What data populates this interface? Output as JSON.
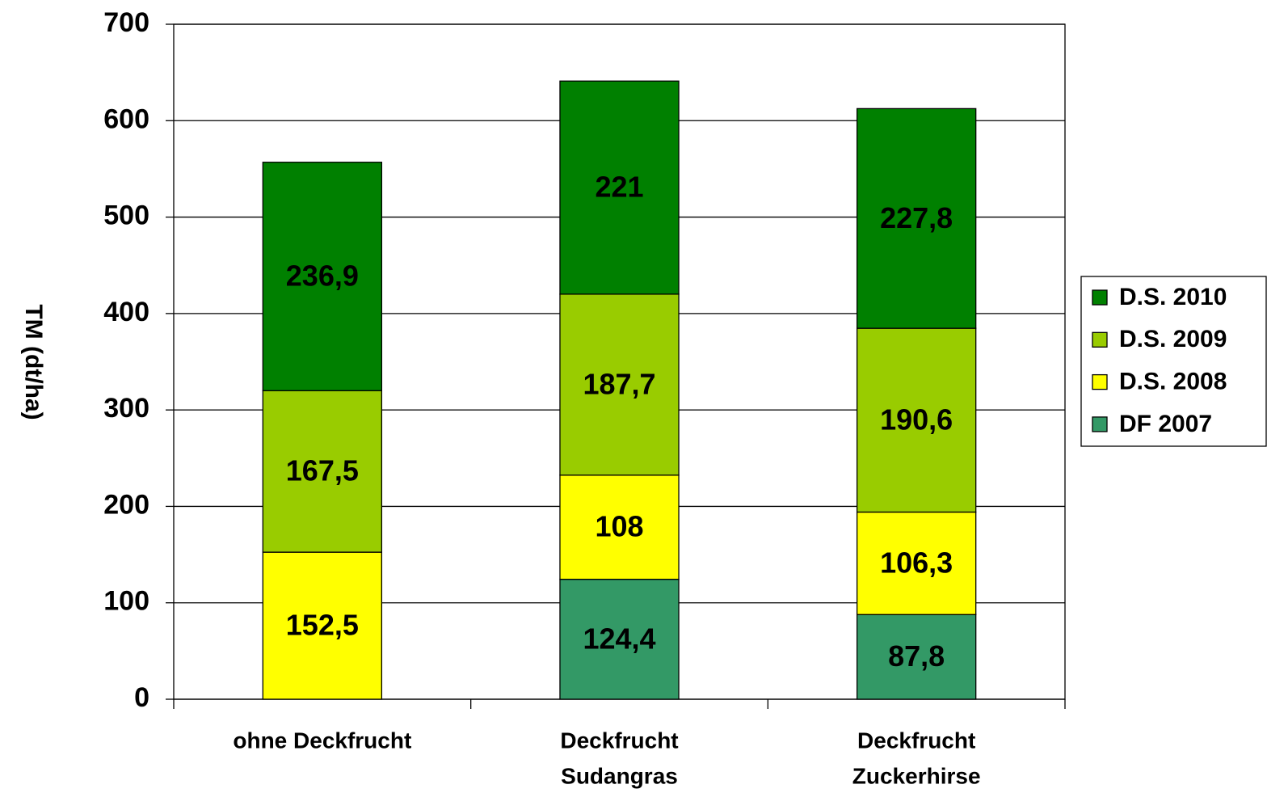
{
  "chart_data": {
    "type": "stacked_bar",
    "y_label": "TM (dt/ha)",
    "categories": [
      [
        "ohne Deckfrucht"
      ],
      [
        "Deckfrucht",
        "Sudangras"
      ],
      [
        "Deckfrucht",
        "Zuckerhirse"
      ]
    ],
    "series": [
      {
        "name": "DF 2007",
        "color": "#339966",
        "values": [
          null,
          124.4,
          87.8
        ],
        "value_labels": [
          null,
          "124,4",
          "87,8"
        ]
      },
      {
        "name": "D.S. 2008",
        "color": "#ffff00",
        "values": [
          152.5,
          108,
          106.3
        ],
        "value_labels": [
          "152,5",
          "108",
          "106,3"
        ]
      },
      {
        "name": "D.S. 2009",
        "color": "#99cc00",
        "values": [
          167.5,
          187.7,
          190.6
        ],
        "value_labels": [
          "167,5",
          "187,7",
          "190,6"
        ]
      },
      {
        "name": "D.S. 2010",
        "color": "#008000",
        "values": [
          236.9,
          221,
          227.8
        ],
        "value_labels": [
          "236,9",
          "221",
          "227,8"
        ]
      }
    ],
    "ylim": [
      0,
      700
    ],
    "yticks": [
      0,
      100,
      200,
      300,
      400,
      500,
      600,
      700
    ],
    "grid": true,
    "legend": "right"
  }
}
